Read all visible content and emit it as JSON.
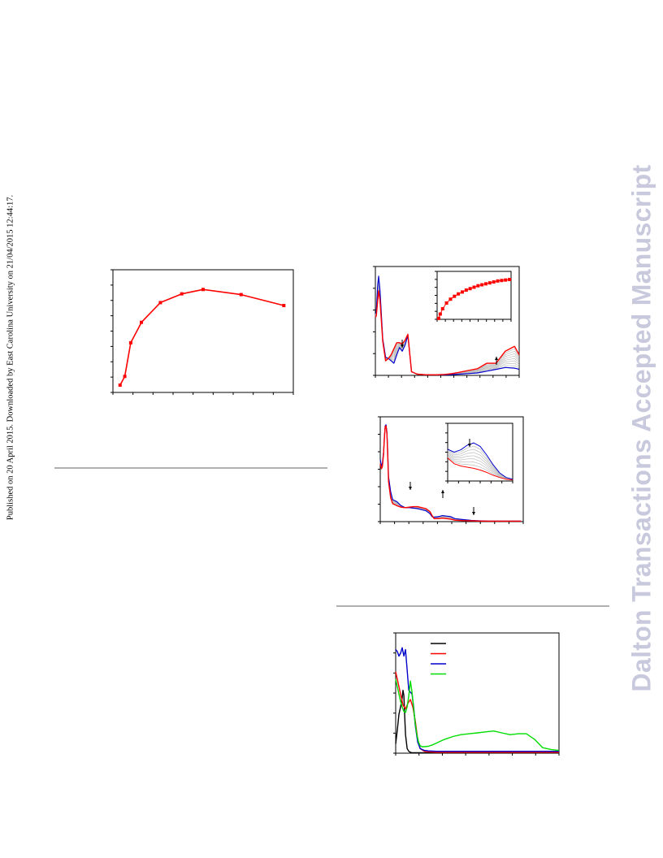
{
  "sidebar_left": {
    "text": "Published on 20 April 2015. Downloaded by East Carolina University on 21/04/2015 12:44:17."
  },
  "watermark": {
    "text": "Dalton Transactions Accepted Manuscript"
  },
  "colors": {
    "red": "#ff0000",
    "blue": "#0000cc",
    "black": "#000000",
    "green": "#00dd00",
    "grey": "#bdbdbd",
    "rule": "#b0b0b0",
    "watermark": "#c9c9de"
  },
  "chart_data": [
    {
      "type": "line",
      "series": [
        {
          "color": "red",
          "marker": "square",
          "x": [
            0.0,
            0.2,
            0.45,
            0.9,
            1.7,
            2.6,
            3.5,
            5.1,
            6.9
          ],
          "y": [
            0.5,
            1.1,
            3.4,
            4.8,
            6.15,
            6.75,
            7.05,
            6.7,
            5.95
          ]
        }
      ],
      "xlim": [
        -0.3,
        7.3
      ],
      "ylim": [
        0,
        8.4
      ],
      "grid": false
    },
    {
      "type": "line",
      "series": [
        {
          "color": "blue",
          "x": [
            0,
            2,
            5,
            7,
            10,
            16,
            22,
            28,
            34,
            40,
            46,
            52,
            58,
            64,
            70,
            78,
            90,
            110,
            130,
            150,
            165,
            180,
            200,
            220,
            240,
            260,
            280,
            300,
            310
          ],
          "y": [
            0.51,
            0.52,
            0.75,
            0.82,
            0.7,
            0.3,
            0.15,
            0.14,
            0.12,
            0.1,
            0.17,
            0.23,
            0.2,
            0.25,
            0.33,
            0.03,
            0.01,
            0.005,
            0.005,
            0.005,
            0.007,
            0.01,
            0.015,
            0.02,
            0.035,
            0.05,
            0.065,
            0.06,
            0.05
          ]
        },
        {
          "color": "red",
          "x": [
            0,
            2,
            5,
            7,
            10,
            16,
            22,
            28,
            34,
            40,
            46,
            52,
            58,
            64,
            70,
            78,
            90,
            110,
            130,
            150,
            165,
            180,
            200,
            220,
            240,
            260,
            280,
            300,
            310
          ],
          "y": [
            0.48,
            0.49,
            0.62,
            0.7,
            0.62,
            0.28,
            0.12,
            0.14,
            0.17,
            0.22,
            0.27,
            0.27,
            0.26,
            0.29,
            0.34,
            0.03,
            0.01,
            0.005,
            0.005,
            0.008,
            0.015,
            0.025,
            0.04,
            0.055,
            0.1,
            0.1,
            0.2,
            0.24,
            0.17
          ]
        }
      ],
      "xlim": [
        0,
        310
      ],
      "ylim": [
        0,
        0.9
      ],
      "grid": false,
      "annotations": [
        "arrow-down",
        "arrow-up"
      ],
      "inset": {
        "type": "line",
        "series": [
          {
            "color": "red",
            "marker": "square",
            "x": [
              0,
              0.2,
              0.5,
              1,
              1.5,
              2,
              2.5,
              3,
              3.5,
              4,
              4.5,
              5,
              5.5,
              6,
              6.5,
              7,
              7.5,
              8,
              8.5,
              9
            ],
            "y": [
              0.02,
              0.11,
              0.22,
              0.34,
              0.42,
              0.48,
              0.53,
              0.57,
              0.61,
              0.64,
              0.67,
              0.7,
              0.72,
              0.74,
              0.76,
              0.78,
              0.8,
              0.81,
              0.82,
              0.83
            ]
          }
        ],
        "xlim": [
          -0.2,
          9.2
        ],
        "ylim": [
          0,
          1
        ]
      }
    },
    {
      "type": "line",
      "series": [
        {
          "color": "blue",
          "x": [
            0,
            3,
            5,
            8,
            10,
            12,
            14,
            16,
            18,
            20,
            25,
            30,
            40,
            50,
            60,
            70,
            80,
            90,
            100,
            110,
            120,
            125,
            130,
            140,
            150,
            160,
            170,
            180,
            200,
            220,
            240,
            260,
            280,
            300,
            320,
            340
          ],
          "y": [
            0.62,
            0.56,
            0.58,
            0.7,
            0.85,
            0.96,
            0.97,
            0.9,
            0.7,
            0.45,
            0.3,
            0.22,
            0.2,
            0.16,
            0.14,
            0.14,
            0.135,
            0.13,
            0.12,
            0.11,
            0.08,
            0.05,
            0.045,
            0.05,
            0.06,
            0.055,
            0.05,
            0.03,
            0.02,
            0.012,
            0.008,
            0.006,
            0.005,
            0.005,
            0.005,
            0.005
          ]
        },
        {
          "color": "red",
          "x": [
            0,
            3,
            5,
            8,
            10,
            12,
            14,
            16,
            18,
            20,
            25,
            30,
            40,
            50,
            60,
            70,
            80,
            90,
            100,
            110,
            120,
            125,
            130,
            140,
            150,
            160,
            170,
            180,
            200,
            220,
            240,
            260,
            280,
            300,
            320,
            340
          ],
          "y": [
            0.58,
            0.53,
            0.55,
            0.68,
            0.84,
            0.95,
            0.96,
            0.88,
            0.66,
            0.4,
            0.24,
            0.18,
            0.16,
            0.145,
            0.14,
            0.145,
            0.15,
            0.15,
            0.14,
            0.13,
            0.1,
            0.06,
            0.03,
            0.03,
            0.035,
            0.03,
            0.025,
            0.015,
            0.01,
            0.008,
            0.006,
            0.005,
            0.005,
            0.005,
            0.005,
            0.005
          ]
        }
      ],
      "xlim": [
        0,
        345
      ],
      "ylim": [
        0,
        1.05
      ],
      "grid": false,
      "annotations": [
        "arrow-down",
        "arrow-up",
        "arrow-down"
      ],
      "inset": {
        "type": "line",
        "series": [
          {
            "color": "blue",
            "x": [
              0,
              10,
              20,
              30,
              40,
              50,
              60,
              70,
              80,
              90,
              100
            ],
            "y": [
              0.55,
              0.5,
              0.54,
              0.62,
              0.66,
              0.6,
              0.45,
              0.28,
              0.14,
              0.06,
              0.03
            ]
          },
          {
            "color": "red",
            "x": [
              0,
              10,
              20,
              30,
              40,
              50,
              60,
              70,
              80,
              90,
              100
            ],
            "y": [
              0.4,
              0.3,
              0.26,
              0.24,
              0.22,
              0.19,
              0.15,
              0.1,
              0.06,
              0.03,
              0.02
            ]
          }
        ],
        "xlim": [
          0,
          100
        ],
        "ylim": [
          0,
          1
        ]
      }
    },
    {
      "type": "line",
      "series": [
        {
          "color": "black",
          "x": [
            0,
            2,
            4,
            6,
            8,
            9,
            10,
            11,
            12,
            14,
            16,
            18,
            20,
            25,
            30,
            50,
            100,
            150,
            200
          ],
          "y": [
            0.1,
            0.25,
            0.42,
            0.5,
            0.6,
            0.68,
            0.62,
            0.4,
            0.2,
            0.05,
            0.02,
            0.01,
            0.005,
            0.004,
            0.004,
            0.004,
            0.004,
            0.004,
            0.004
          ]
        },
        {
          "color": "red",
          "x": [
            0,
            3,
            6,
            9,
            12,
            15,
            18,
            21,
            24,
            27,
            30,
            35,
            40,
            50,
            60,
            80,
            100,
            120,
            150,
            180,
            200
          ],
          "y": [
            0.88,
            0.76,
            0.64,
            0.52,
            0.48,
            0.54,
            0.58,
            0.5,
            0.35,
            0.15,
            0.05,
            0.02,
            0.015,
            0.01,
            0.01,
            0.01,
            0.01,
            0.01,
            0.01,
            0.01,
            0.01
          ]
        },
        {
          "color": "blue",
          "x": [
            0,
            2,
            4,
            6,
            8,
            10,
            12,
            14,
            16,
            18,
            20,
            22,
            24,
            27,
            30,
            35,
            40,
            50,
            60,
            80,
            100,
            120,
            150,
            180,
            200
          ],
          "y": [
            1.12,
            1.1,
            1.05,
            1.08,
            1.14,
            1.05,
            1.12,
            0.9,
            0.68,
            0.66,
            0.64,
            0.5,
            0.3,
            0.12,
            0.05,
            0.03,
            0.025,
            0.02,
            0.02,
            0.02,
            0.02,
            0.02,
            0.02,
            0.02,
            0.02
          ]
        },
        {
          "color": "green",
          "x": [
            0,
            2,
            4,
            6,
            8,
            10,
            12,
            14,
            16,
            18,
            20,
            22,
            24,
            26,
            28,
            30,
            32,
            35,
            40,
            45,
            50,
            60,
            70,
            80,
            90,
            100,
            110,
            120,
            130,
            140,
            150,
            160,
            170,
            180,
            190,
            200
          ],
          "y": [
            0.8,
            0.72,
            0.64,
            0.56,
            0.5,
            0.45,
            0.44,
            0.5,
            0.62,
            0.78,
            0.66,
            0.48,
            0.32,
            0.2,
            0.12,
            0.08,
            0.07,
            0.07,
            0.075,
            0.09,
            0.11,
            0.15,
            0.18,
            0.2,
            0.21,
            0.22,
            0.23,
            0.24,
            0.22,
            0.2,
            0.21,
            0.21,
            0.15,
            0.06,
            0.04,
            0.03
          ]
        }
      ],
      "xlim": [
        0,
        200
      ],
      "ylim": [
        0,
        1.3
      ],
      "grid": false,
      "legend": "top-left"
    }
  ]
}
